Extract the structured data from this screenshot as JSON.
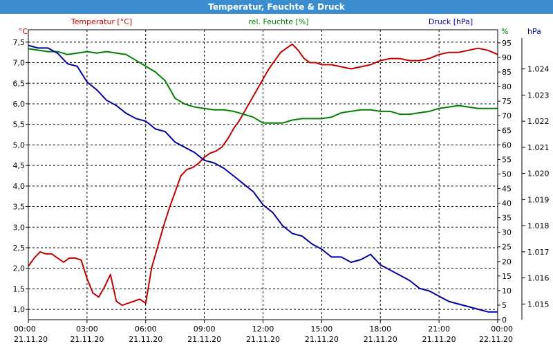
{
  "window": {
    "title": "Temperatur, Feuchte & Druck"
  },
  "chart_data": {
    "type": "line",
    "title": "Temperatur, Feuchte & Druck",
    "grid": true,
    "legend_placement": "top",
    "x_ticks": [
      {
        "time": "00:00",
        "date": "21.11.20"
      },
      {
        "time": "03:00",
        "date": "21.11.20"
      },
      {
        "time": "06:00",
        "date": "21.11.20"
      },
      {
        "time": "09:00",
        "date": "21.11.20"
      },
      {
        "time": "12:00",
        "date": "21.11.20"
      },
      {
        "time": "15:00",
        "date": "21.11.20"
      },
      {
        "time": "18:00",
        "date": "21.11.20"
      },
      {
        "time": "21:00",
        "date": "21.11.20"
      },
      {
        "time": "00:00",
        "date": "22.11.20"
      }
    ],
    "x_range_hours": [
      0,
      24
    ],
    "axes": {
      "temperature": {
        "label": "Temperatur [°C]",
        "unit": "°C",
        "ylim": [
          0.75,
          7.8
        ],
        "ticks": [
          "1,0",
          "1,5",
          "2,0",
          "2,5",
          "3,0",
          "3,5",
          "4,0",
          "4,5",
          "5,0",
          "5,5",
          "6,0",
          "6,5",
          "7,0",
          "7,5"
        ],
        "color": "#c00000"
      },
      "humidity": {
        "label": "rel. Feuchte [%]",
        "unit": "%",
        "ylim": [
          0,
          99.5
        ],
        "ticks": [
          "0",
          "5",
          "10",
          "15",
          "20",
          "25",
          "30",
          "35",
          "40",
          "45",
          "50",
          "55",
          "60",
          "65",
          "70",
          "75",
          "80",
          "85",
          "90",
          "95"
        ],
        "color": "#008000"
      },
      "pressure": {
        "label": "Druck [hPa]",
        "unit": "hPa",
        "ylim": [
          1.0144,
          1.0255
        ],
        "ticks": [
          "1.015",
          "1.016",
          "1.017",
          "1.018",
          "1.019",
          "1.020",
          "1.021",
          "1.022",
          "1.023",
          "1.024"
        ],
        "color": "#0000a0"
      }
    },
    "series": [
      {
        "name": "Temperatur [°C]",
        "axis": "temperature",
        "color": "#c00000",
        "x": [
          0,
          0.3,
          0.6,
          0.9,
          1.2,
          1.5,
          1.8,
          2.1,
          2.4,
          2.7,
          3.0,
          3.3,
          3.6,
          3.9,
          4.2,
          4.5,
          4.8,
          5.1,
          5.4,
          5.7,
          6.0,
          6.3,
          6.6,
          6.9,
          7.2,
          7.5,
          7.8,
          8.1,
          8.4,
          8.7,
          9.0,
          9.3,
          9.6,
          9.9,
          10.2,
          10.5,
          10.8,
          11.1,
          11.4,
          11.7,
          12.0,
          12.3,
          12.6,
          12.9,
          13.2,
          13.5,
          13.8,
          14.1,
          14.4,
          14.7,
          15.0,
          15.5,
          16.0,
          16.5,
          17.0,
          17.5,
          18.0,
          18.5,
          19.0,
          19.5,
          20.0,
          20.5,
          21.0,
          21.5,
          22.0,
          22.5,
          23.0,
          23.5,
          24.0
        ],
        "values": [
          2.05,
          2.25,
          2.4,
          2.35,
          2.35,
          2.25,
          2.15,
          2.25,
          2.25,
          2.2,
          1.75,
          1.4,
          1.3,
          1.55,
          1.85,
          1.2,
          1.1,
          1.15,
          1.2,
          1.25,
          1.15,
          2.0,
          2.5,
          3.0,
          3.45,
          3.85,
          4.25,
          4.4,
          4.45,
          4.55,
          4.7,
          4.8,
          4.85,
          4.95,
          5.15,
          5.4,
          5.6,
          5.85,
          6.1,
          6.35,
          6.6,
          6.85,
          7.05,
          7.25,
          7.35,
          7.45,
          7.3,
          7.1,
          7.0,
          7.0,
          6.95,
          6.95,
          6.9,
          6.85,
          6.9,
          6.95,
          7.05,
          7.1,
          7.1,
          7.05,
          7.05,
          7.1,
          7.2,
          7.25,
          7.25,
          7.3,
          7.35,
          7.3,
          7.2
        ]
      },
      {
        "name": "rel. Feuchte [%]",
        "axis": "humidity",
        "color": "#008000",
        "x": [
          0,
          0.5,
          1.0,
          1.5,
          2.0,
          2.5,
          3.0,
          3.5,
          4.0,
          4.5,
          5.0,
          5.5,
          6.0,
          6.5,
          7.0,
          7.5,
          8.0,
          8.5,
          9.0,
          9.5,
          10.0,
          10.5,
          11.0,
          11.5,
          12.0,
          12.5,
          13.0,
          13.5,
          14.0,
          14.5,
          15.0,
          15.5,
          16.0,
          16.5,
          17.0,
          17.5,
          18.0,
          18.5,
          19.0,
          19.5,
          20.0,
          20.5,
          21.0,
          21.5,
          22.0,
          22.5,
          23.0,
          23.5,
          24.0
        ],
        "values": [
          93,
          92.5,
          92,
          92,
          91,
          91.5,
          92,
          91.5,
          92,
          91.5,
          91,
          89,
          87,
          85,
          82,
          76,
          74,
          73,
          72.5,
          72,
          72,
          71.5,
          70.5,
          69.5,
          67.5,
          67.5,
          67.5,
          68.5,
          69,
          69,
          69,
          69.5,
          71,
          71.5,
          72,
          72,
          71.5,
          71.5,
          70.5,
          70.5,
          71,
          71.5,
          72.5,
          73,
          73.5,
          73,
          72.5,
          72.5,
          72.5
        ]
      },
      {
        "name": "Druck [hPa]",
        "axis": "pressure",
        "color": "#0000a0",
        "x": [
          0,
          0.5,
          1.0,
          1.5,
          2.0,
          2.5,
          3.0,
          3.5,
          4.0,
          4.5,
          5.0,
          5.5,
          6.0,
          6.5,
          7.0,
          7.5,
          8.0,
          8.5,
          9.0,
          9.5,
          10.0,
          10.5,
          11.0,
          11.5,
          12.0,
          12.5,
          13.0,
          13.5,
          14.0,
          14.5,
          15.0,
          15.5,
          16.0,
          16.5,
          17.0,
          17.5,
          18.0,
          18.5,
          19.0,
          19.5,
          20.0,
          20.5,
          21.0,
          21.5,
          22.0,
          22.5,
          23.0,
          23.5,
          24.0
        ],
        "values": [
          1.0249,
          1.0248,
          1.0248,
          1.0246,
          1.0242,
          1.0241,
          1.0235,
          1.0232,
          1.0228,
          1.0226,
          1.0223,
          1.0221,
          1.022,
          1.0217,
          1.0216,
          1.0212,
          1.021,
          1.0208,
          1.0205,
          1.0204,
          1.0202,
          1.0199,
          1.0196,
          1.0193,
          1.0188,
          1.0185,
          1.018,
          1.0177,
          1.0176,
          1.0173,
          1.0171,
          1.0168,
          1.0168,
          1.0166,
          1.0167,
          1.0169,
          1.0165,
          1.0163,
          1.0161,
          1.0159,
          1.0156,
          1.0155,
          1.0153,
          1.0151,
          1.015,
          1.0149,
          1.0148,
          1.0147,
          1.0147
        ]
      }
    ]
  }
}
